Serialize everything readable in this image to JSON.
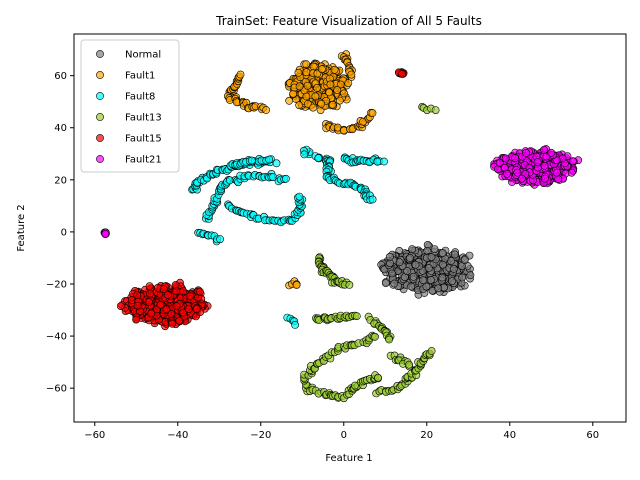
{
  "chart_data": {
    "type": "scatter",
    "title": "TrainSet: Feature Visualization of All 5 Faults",
    "xlabel": "Feature 1",
    "ylabel": "Feature 2",
    "xlim": [
      -65,
      68
    ],
    "ylim": [
      -73,
      76
    ],
    "xticks": [
      -60,
      -40,
      -20,
      0,
      20,
      40,
      60
    ],
    "yticks": [
      -60,
      -40,
      -20,
      0,
      20,
      40,
      60
    ],
    "xtick_labels": [
      "−60",
      "−40",
      "−20",
      "0",
      "20",
      "40",
      "60"
    ],
    "ytick_labels": [
      "−60",
      "−40",
      "−20",
      "0",
      "20",
      "40",
      "60"
    ],
    "grid": false,
    "legend_position": "top-left",
    "series": [
      {
        "name": "Normal",
        "color": "#808080",
        "clusters": [
          {
            "shape": "blob",
            "center": [
              20,
              -15
            ],
            "spread": [
              10,
              8
            ],
            "count": 420
          }
        ]
      },
      {
        "name": "Fault1",
        "color": "#ffa500",
        "clusters": [
          {
            "shape": "blob",
            "center": [
              -6,
              56
            ],
            "spread": [
              7,
              8
            ],
            "count": 320
          },
          {
            "shape": "curve",
            "points": [
              [
                -27,
                53
              ],
              [
                -26,
                57
              ],
              [
                -25,
                60
              ]
            ],
            "count": 18
          },
          {
            "shape": "curve",
            "points": [
              [
                -28,
                52
              ],
              [
                -24,
                49
              ],
              [
                -19,
                47
              ]
            ],
            "count": 25
          },
          {
            "shape": "curve",
            "points": [
              [
                -5,
                41
              ],
              [
                0,
                39
              ],
              [
                4,
                41
              ],
              [
                7,
                45
              ]
            ],
            "count": 30
          },
          {
            "shape": "curve",
            "points": [
              [
                0,
                68
              ],
              [
                1,
                65
              ],
              [
                2,
                61
              ]
            ],
            "count": 15
          },
          {
            "shape": "curve",
            "points": [
              [
                -13,
                -20.5
              ],
              [
                -11.5,
                -20
              ]
            ],
            "count": 5
          }
        ]
      },
      {
        "name": "Fault8",
        "color": "#00ffff",
        "clusters": [
          {
            "shape": "curve",
            "points": [
              [
                -36,
                16
              ],
              [
                -35,
                20
              ],
              [
                -30,
                23
              ],
              [
                -25,
                26
              ],
              [
                -20,
                27
              ],
              [
                -17,
                27
              ]
            ],
            "count": 60
          },
          {
            "shape": "curve",
            "points": [
              [
                -33,
                5
              ],
              [
                -31,
                12
              ],
              [
                -29,
                18
              ],
              [
                -24,
                21
              ],
              [
                -19,
                22
              ],
              [
                -14,
                20
              ]
            ],
            "count": 55
          },
          {
            "shape": "curve",
            "points": [
              [
                -28,
                10
              ],
              [
                -26,
                8
              ],
              [
                -20,
                5
              ],
              [
                -15,
                4
              ],
              [
                -12,
                5
              ],
              [
                -10,
                9
              ],
              [
                -11,
                14
              ]
            ],
            "count": 50
          },
          {
            "shape": "curve",
            "points": [
              [
                -27,
                26
              ],
              [
                -23,
                27
              ],
              [
                -18,
                27.5
              ]
            ],
            "count": 20
          },
          {
            "shape": "curve",
            "points": [
              [
                -35,
                0
              ],
              [
                -33,
                -1.5
              ],
              [
                -30,
                -3
              ]
            ],
            "count": 12
          },
          {
            "shape": "curve",
            "points": [
              [
                -8,
                30
              ],
              [
                -10,
                30.5
              ]
            ],
            "count": 6
          },
          {
            "shape": "curve",
            "points": [
              [
                -7,
                29
              ],
              [
                -3,
                27
              ],
              [
                -4,
                22
              ],
              [
                -1,
                19
              ],
              [
                3,
                18
              ],
              [
                5,
                15
              ],
              [
                6.5,
                12
              ]
            ],
            "count": 55
          },
          {
            "shape": "curve",
            "points": [
              [
                0,
                28
              ],
              [
                3,
                27
              ],
              [
                6,
                27
              ],
              [
                9,
                27
              ]
            ],
            "count": 25
          },
          {
            "shape": "curve",
            "points": [
              [
                -13,
                -33
              ],
              [
                -12,
                -35
              ]
            ],
            "count": 5
          }
        ]
      },
      {
        "name": "Fault13",
        "color": "#9acd32",
        "clusters": [
          {
            "shape": "curve",
            "points": [
              [
                -6,
                -10
              ],
              [
                -5,
                -14
              ],
              [
                -3,
                -17
              ],
              [
                -2,
                -19
              ],
              [
                1,
                -20
              ]
            ],
            "count": 35
          },
          {
            "shape": "curve",
            "points": [
              [
                -7,
                -34
              ],
              [
                -4,
                -33.5
              ],
              [
                -1,
                -33
              ],
              [
                3,
                -32
              ]
            ],
            "count": 25
          },
          {
            "shape": "curve",
            "points": [
              [
                -9,
                -60
              ],
              [
                -9,
                -55
              ],
              [
                -6,
                -50
              ],
              [
                -3,
                -47
              ],
              [
                -1,
                -45
              ],
              [
                2,
                -43
              ],
              [
                5,
                -42
              ],
              [
                8,
                -40
              ]
            ],
            "count": 45
          },
          {
            "shape": "curve",
            "points": [
              [
                -8,
                -60
              ],
              [
                -5,
                -62
              ],
              [
                -2,
                -63
              ],
              [
                0,
                -63
              ],
              [
                3,
                -60
              ],
              [
                5,
                -57
              ],
              [
                9,
                -56
              ]
            ],
            "count": 40
          },
          {
            "shape": "curve",
            "points": [
              [
                6,
                -33
              ],
              [
                8,
                -35
              ],
              [
                10,
                -38
              ],
              [
                11,
                -41
              ]
            ],
            "count": 18
          },
          {
            "shape": "curve",
            "points": [
              [
                8,
                -62
              ],
              [
                11,
                -61
              ],
              [
                14,
                -59
              ],
              [
                16,
                -56
              ],
              [
                18,
                -52
              ],
              [
                19,
                -48
              ],
              [
                21,
                -46
              ]
            ],
            "count": 40
          },
          {
            "shape": "curve",
            "points": [
              [
                12,
                -48
              ],
              [
                14,
                -50
              ],
              [
                16,
                -51
              ]
            ],
            "count": 12
          },
          {
            "shape": "curve",
            "points": [
              [
                19,
                48
              ],
              [
                21,
                47.5
              ],
              [
                22,
                47
              ]
            ],
            "count": 5
          }
        ]
      },
      {
        "name": "Fault15",
        "color": "#ff0000",
        "clusters": [
          {
            "shape": "blob",
            "center": [
              -43,
              -28
            ],
            "spread": [
              9,
              7
            ],
            "count": 420
          },
          {
            "shape": "blob",
            "center": [
              14,
              61
            ],
            "spread": [
              0.8,
              0.6
            ],
            "count": 8
          }
        ]
      },
      {
        "name": "Fault21",
        "color": "#ff00ff",
        "clusters": [
          {
            "shape": "blob",
            "center": [
              46,
              25
            ],
            "spread": [
              9,
              6
            ],
            "count": 420
          },
          {
            "shape": "blob",
            "center": [
              -57.5,
              -0.5
            ],
            "spread": [
              0.5,
              0.5
            ],
            "count": 6
          }
        ]
      }
    ]
  }
}
